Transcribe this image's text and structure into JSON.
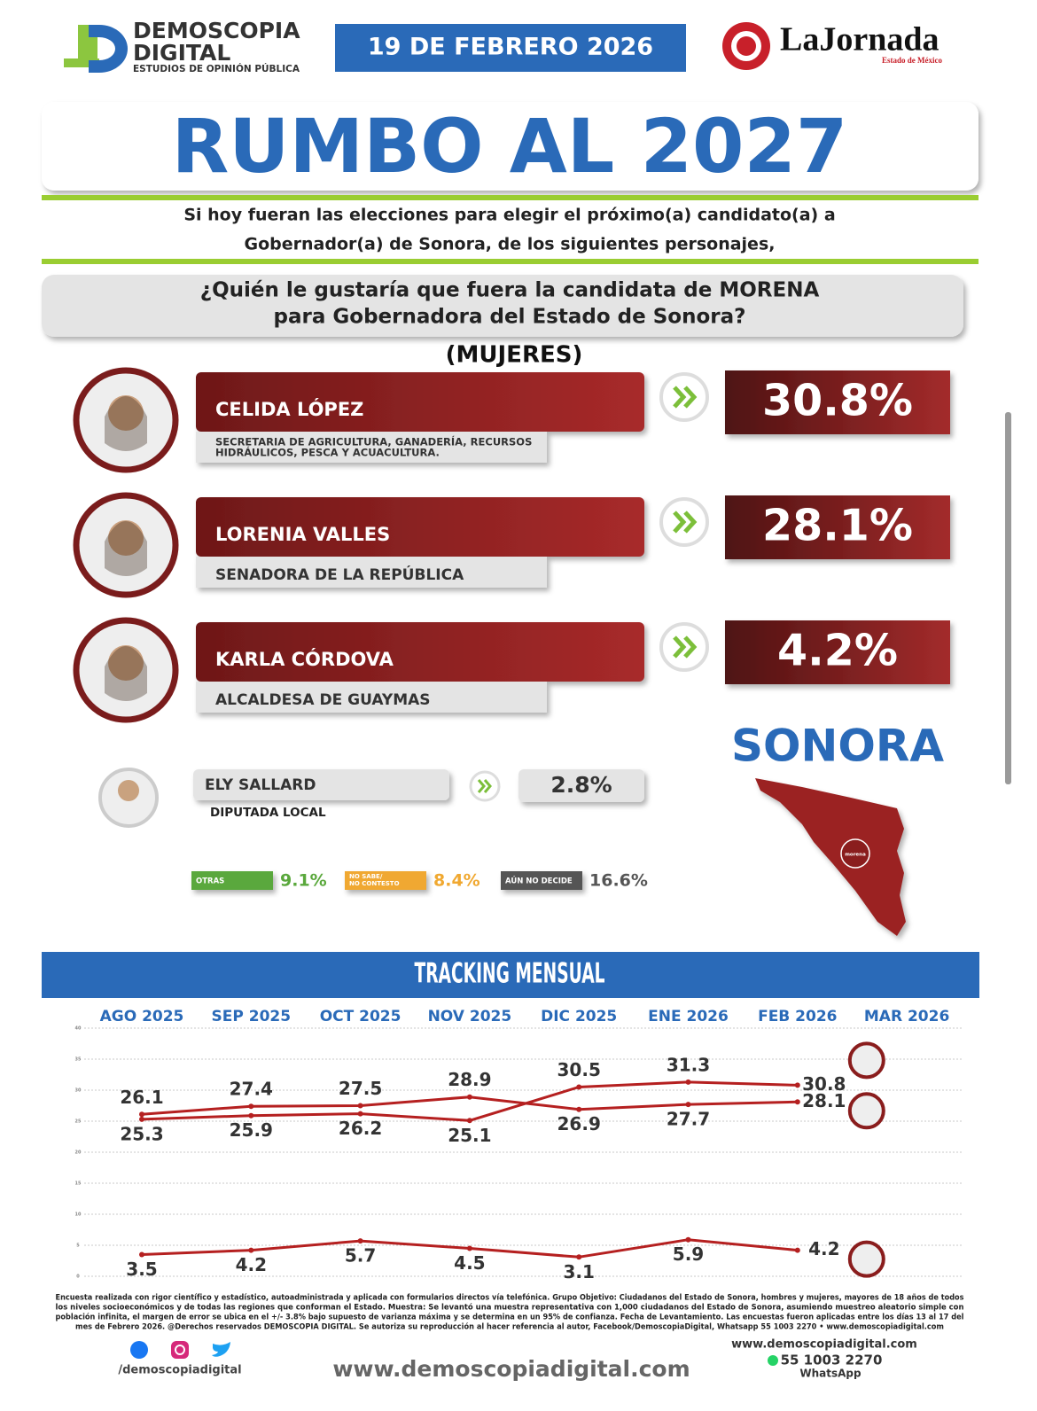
{
  "header": {
    "brand": "DEMOSCOPIA",
    "brand2": "DIGITAL",
    "tagline": "ESTUDIOS DE OPINIÓN PÚBLICA",
    "date": "19 DE FEBRERO 2026",
    "partner": "LaJornada",
    "partner_sub": "Estado de México"
  },
  "title": "RUMBO AL 2027",
  "intro": [
    "Si hoy fueran las elecciones para elegir el próximo(a) candidato(a) a",
    "Gobernador(a) de Sonora, de los siguientes personajes,"
  ],
  "question": [
    "¿Quién le gustaría que fuera la candidata de MORENA",
    "para Gobernadora del Estado de Sonora?"
  ],
  "group": "(MUJERES)",
  "candidates": [
    {
      "name": "CELIDA LÓPEZ",
      "role": [
        "SECRETARIA DE AGRICULTURA, GANADERÍA, RECURSOS",
        "HIDRÁULICOS, PESCA Y ACUACULTURA."
      ],
      "result": "30.8%"
    },
    {
      "name": "LORENIA VALLES",
      "role": [
        "SENADORA DE LA REPÚBLICA"
      ],
      "result": "28.1%"
    },
    {
      "name": "KARLA CÓRDOVA",
      "role": [
        "ALCALDESA DE GUAYMAS"
      ],
      "result": "4.2%"
    }
  ],
  "minor": {
    "name": "ELY SALLARD",
    "role": "DIPUTADA LOCAL",
    "result": "2.8%"
  },
  "others": [
    {
      "label": [
        "OTRAS"
      ],
      "result": "9.1%",
      "color": "#5aa83c"
    },
    {
      "label": [
        "NO SABE/",
        "NO CONTESTO"
      ],
      "result": "8.4%",
      "color": "#f0a830"
    },
    {
      "label": [
        "AÚN NO DECIDE"
      ],
      "result": "16.6%",
      "color": "#555555"
    }
  ],
  "map": {
    "title": "SONORA",
    "badge": "morena"
  },
  "chart_data": {
    "type": "line",
    "title": "TRACKING MENSUAL",
    "categories": [
      "AGO 2025",
      "SEP 2025",
      "OCT 2025",
      "NOV 2025",
      "DIC 2025",
      "ENE 2026",
      "FEB 2026",
      "MAR 2026"
    ],
    "series": [
      {
        "color": "#b52020",
        "values": [
          25.3,
          25.9,
          26.2,
          25.1,
          30.5,
          31.3,
          30.8,
          null
        ]
      },
      {
        "color": "#b52020",
        "values": [
          26.1,
          27.4,
          27.5,
          28.9,
          26.9,
          27.7,
          28.1,
          null
        ]
      },
      {
        "color": "#b52020",
        "values": [
          3.5,
          4.2,
          5.7,
          4.5,
          3.1,
          5.9,
          4.2,
          null
        ]
      }
    ],
    "ylim": [
      0,
      40
    ],
    "yticks": [
      0,
      5,
      10,
      15,
      20,
      25,
      30,
      35,
      40
    ],
    "grid": true
  },
  "footer": {
    "notes": [
      "Encuesta realizada con rigor científico y estadístico, autoadministrada y aplicada con formularios directos vía telefónica. Grupo Objetivo: Ciudadanos del Estado de Sonora, hombres y mujeres, mayores de 18 años de todos",
      "los niveles socioeconómicos y de todas las regiones que conforman el Estado. Muestra: Se levantó una muestra representativa con 1,000 ciudadanos del Estado de Sonora, asumiendo muestreo aleatorio simple con",
      "población infinita, el margen de error se ubica en el +/- 3.8% bajo supuesto de varianza máxima y se determina en un 95% de confianza. Fecha de Levantamiento. Las encuestas fueron aplicadas entre los días 13 al 17 del",
      "mes de Febrero 2026. @Derechos reservados DEMOSCOPIA DIGITAL. Se autoriza su reproducción al hacer referencia al autor, Facebook/DemoscopiaDigital, Whatsapp 55 1003 2270 • www.demoscopiadigital.com"
    ],
    "social": "/demoscopiadigital",
    "website": "www.demoscopiadigital.com",
    "website_small": "www.demoscopiadigital.com",
    "phone": "55 1003 2270",
    "phone_label": "WhatsApp"
  }
}
